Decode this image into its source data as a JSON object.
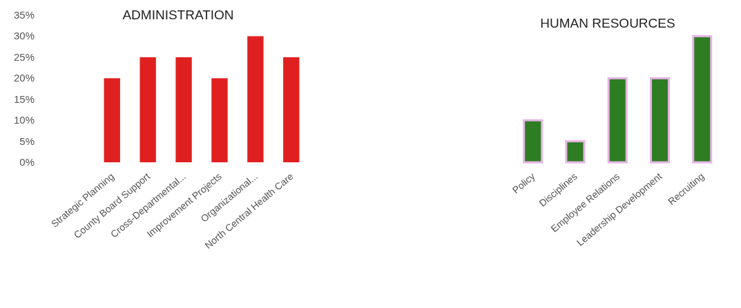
{
  "chart_data": [
    {
      "type": "bar",
      "title": "ADMINISTRATION",
      "categories": [
        "Strategic Planning",
        "County Board Support",
        "Cross-Departmental...",
        "Improvement Projects",
        "Organizational...",
        "North Central Health Care"
      ],
      "values": [
        20,
        25,
        25,
        20,
        30,
        25
      ],
      "color": "#e02020",
      "ylim": [
        0,
        35
      ],
      "yticks": [
        {
          "value": 0,
          "label": "0%"
        },
        {
          "value": 5,
          "label": "5%"
        },
        {
          "value": 10,
          "label": "10%"
        },
        {
          "value": 15,
          "label": "15%"
        },
        {
          "value": 20,
          "label": "20%"
        },
        {
          "value": 25,
          "label": "25%"
        },
        {
          "value": 30,
          "label": "30%"
        },
        {
          "value": 35,
          "label": "35%"
        }
      ]
    },
    {
      "type": "bar",
      "title": "HUMAN RESOURCES",
      "categories": [
        "Policy",
        "Disciplines",
        "Employee Relations",
        "Leadership Development",
        "Recruiting"
      ],
      "values": [
        10,
        5,
        20,
        20,
        30
      ],
      "color": "#2e7d22",
      "ylim": [
        0,
        35
      ],
      "tick_labels": "x"
    }
  ]
}
